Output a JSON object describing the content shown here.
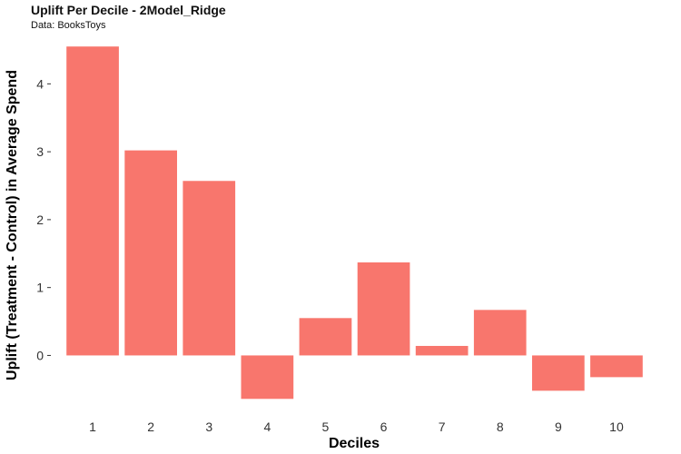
{
  "chart_data": {
    "type": "bar",
    "title": "Uplift Per Decile - 2Model_Ridge",
    "subtitle": "Data: BooksToys",
    "xlabel": "Deciles",
    "ylabel": "Uplift (Treatment - Control) in Average Spend",
    "categories": [
      "1",
      "2",
      "3",
      "4",
      "5",
      "6",
      "7",
      "8",
      "9",
      "10"
    ],
    "values": [
      4.55,
      3.02,
      2.57,
      -0.64,
      0.55,
      1.37,
      0.14,
      0.67,
      -0.52,
      -0.32
    ],
    "ylim": [
      -0.85,
      4.7
    ],
    "yticks": [
      0,
      1,
      2,
      3,
      4
    ],
    "bar_color": "#F8766D",
    "grid": false,
    "legend": "none"
  }
}
